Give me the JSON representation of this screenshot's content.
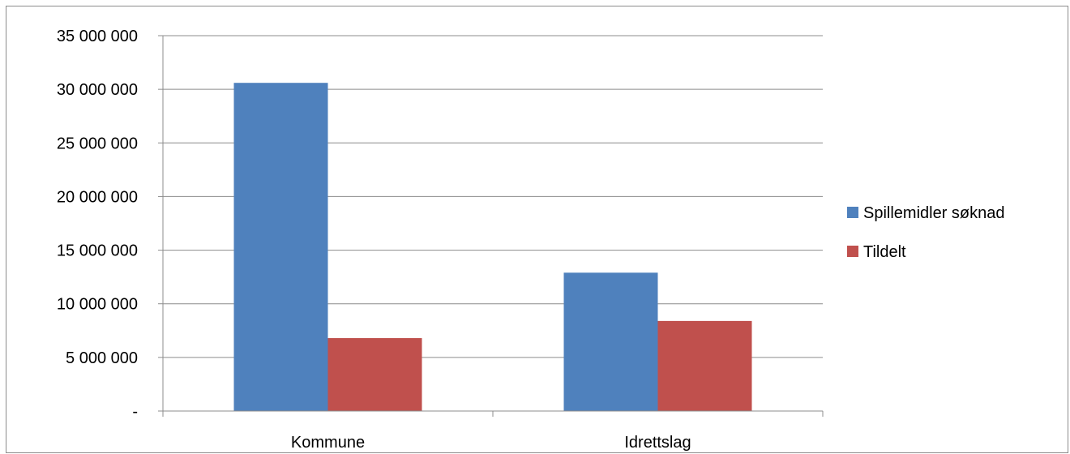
{
  "chart_data": {
    "type": "bar",
    "categories": [
      "Kommune",
      "Idrettslag"
    ],
    "series": [
      {
        "name": "Spillemidler søknad",
        "color": "#4f81bd",
        "values": [
          30600000,
          12900000
        ]
      },
      {
        "name": "Tildelt",
        "color": "#c0504d",
        "values": [
          6800000,
          8400000
        ]
      }
    ],
    "ylim": [
      0,
      35000000
    ],
    "yticks": [
      0,
      5000000,
      10000000,
      15000000,
      20000000,
      25000000,
      30000000,
      35000000
    ],
    "ytick_labels": [
      "-",
      "5 000 000",
      "10 000 000",
      "15 000 000",
      "20 000 000",
      "25 000 000",
      "30 000 000",
      "35 000 000"
    ],
    "grid": true,
    "gridline_color": "#8c8c8c",
    "legend_position": "right",
    "title": "",
    "xlabel": "",
    "ylabel": ""
  }
}
